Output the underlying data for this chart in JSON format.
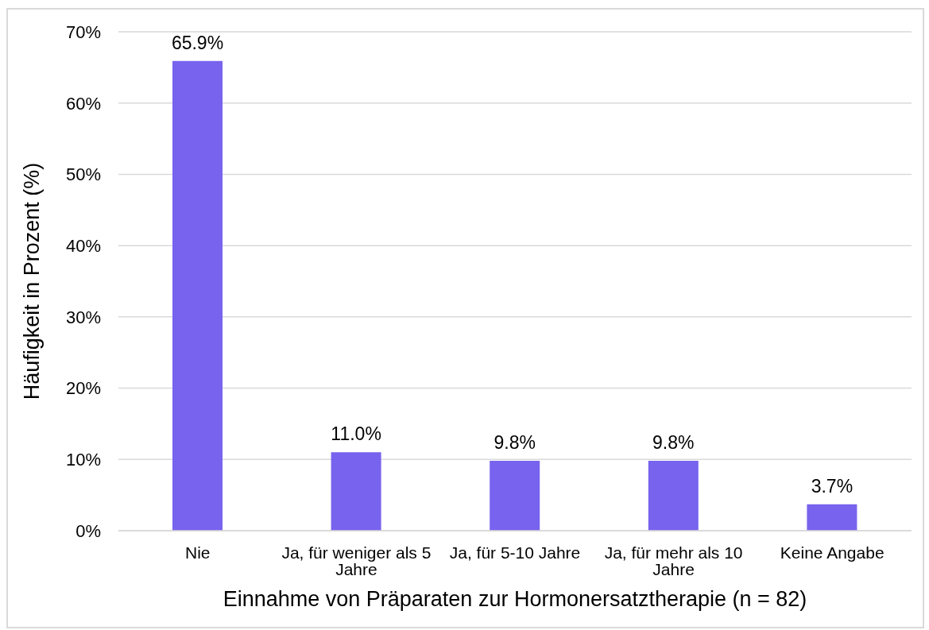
{
  "chart_data": {
    "type": "bar",
    "xlabel": "Einnahme von Präparaten zur Hormonersatztherapie (n = 82)",
    "ylabel": "Häufigkeit in Prozent (%)",
    "categories": [
      "Nie",
      "Ja, für weniger als 5 Jahre",
      "Ja, für 5-10 Jahre",
      "Ja, für mehr als 10 Jahre",
      "Keine Angabe"
    ],
    "values": [
      65.9,
      11.0,
      9.8,
      9.8,
      3.7
    ],
    "value_labels": [
      "65.9%",
      "11.0%",
      "9.8%",
      "9.8%",
      "3.7%"
    ],
    "color": "#7763ee",
    "ylim": [
      0,
      70
    ],
    "yticks": [
      {
        "value": 0,
        "label": "0%"
      },
      {
        "value": 10,
        "label": "10%"
      },
      {
        "value": 20,
        "label": "20%"
      },
      {
        "value": 30,
        "label": "30%"
      },
      {
        "value": 40,
        "label": "40%"
      },
      {
        "value": 50,
        "label": "50%"
      },
      {
        "value": 60,
        "label": "60%"
      },
      {
        "value": 70,
        "label": "70%"
      }
    ],
    "grid": "y"
  }
}
